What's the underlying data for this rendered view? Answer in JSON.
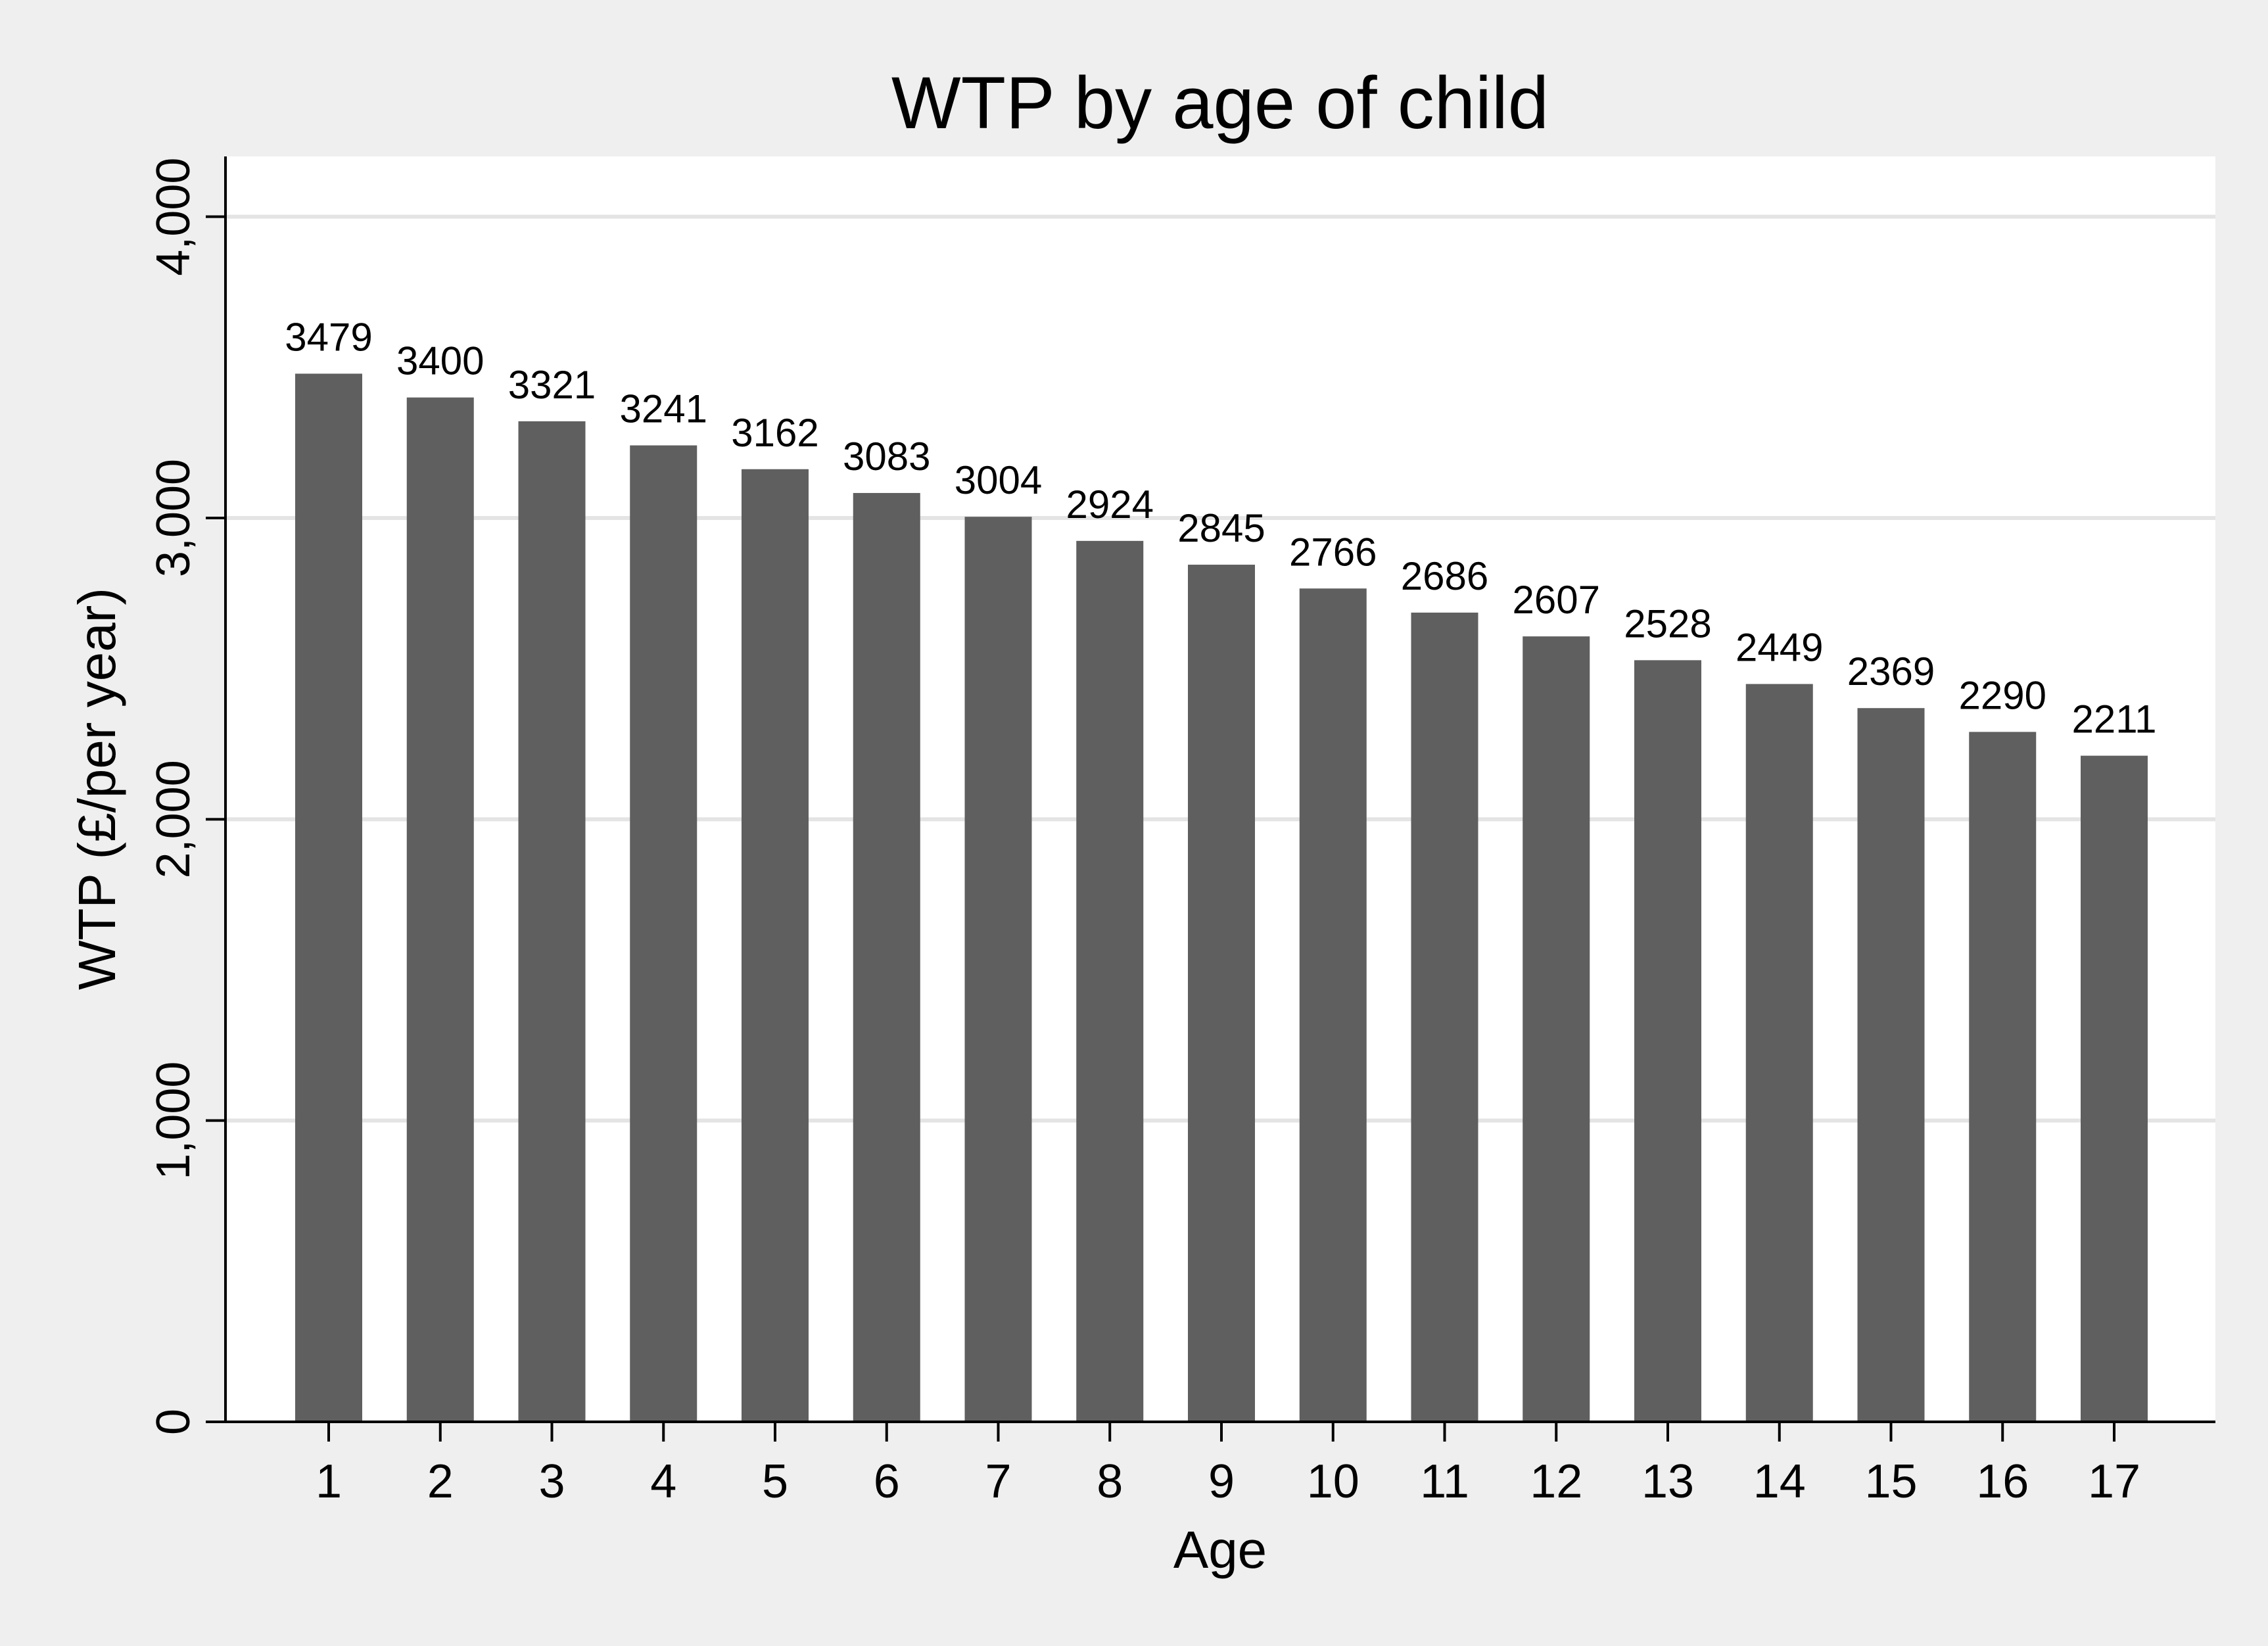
{
  "colors": {
    "background": "#efefef",
    "plot_background": "#ffffff",
    "bar": "#5f5f5f",
    "grid": "#e4e4e4",
    "axis": "#000000"
  },
  "chart_data": {
    "type": "bar",
    "title": "WTP by age of child",
    "xlabel": "Age",
    "ylabel": "WTP  (£/per year)",
    "categories": [
      "1",
      "2",
      "3",
      "4",
      "5",
      "6",
      "7",
      "8",
      "9",
      "10",
      "11",
      "12",
      "13",
      "14",
      "15",
      "16",
      "17"
    ],
    "values": [
      3479,
      3400,
      3321,
      3241,
      3162,
      3083,
      3004,
      2924,
      2845,
      2766,
      2686,
      2607,
      2528,
      2449,
      2369,
      2290,
      2211
    ],
    "ylim": [
      0,
      4200
    ],
    "yticks": [
      0,
      1000,
      2000,
      3000,
      4000
    ],
    "ytick_labels": [
      "0",
      "1,000",
      "2,000",
      "3,000",
      "4,000"
    ],
    "grid": true,
    "data_labels": true
  }
}
